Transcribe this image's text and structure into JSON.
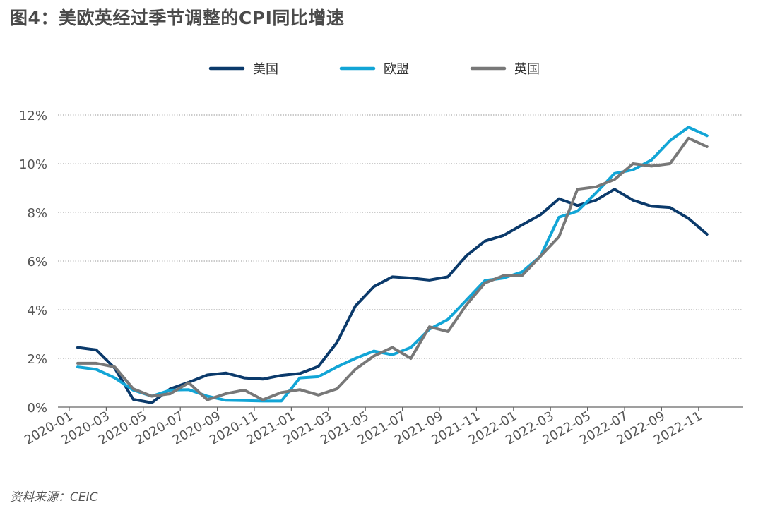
{
  "title": "图4：美欧英经过季节调整的CPI同比增速",
  "source": "资料来源：CEIC",
  "chart_data": {
    "type": "line",
    "title": "图4：美欧英经过季节调整的CPI同比增速",
    "xlabel": "",
    "ylabel": "",
    "ylim": [
      0,
      12
    ],
    "y_ticks": [
      0,
      2,
      4,
      6,
      8,
      10,
      12
    ],
    "y_tick_labels": [
      "0%",
      "2%",
      "4%",
      "6%",
      "8%",
      "10%",
      "12%"
    ],
    "y_unit": "%",
    "grid": "horizontal dotted",
    "legend_position": "top-center",
    "x_tick_labels": [
      "2020-01",
      "2020-03",
      "2020-05",
      "2020-07",
      "2020-09",
      "2020-11",
      "2021-01",
      "2021-03",
      "2021-05",
      "2021-07",
      "2021-09",
      "2021-11",
      "2022-01",
      "2022-03",
      "2022-05",
      "2022-07",
      "2022-09",
      "2022-11"
    ],
    "x": [
      "2020-01",
      "2020-02",
      "2020-03",
      "2020-04",
      "2020-05",
      "2020-06",
      "2020-07",
      "2020-08",
      "2020-09",
      "2020-10",
      "2020-11",
      "2020-12",
      "2021-01",
      "2021-02",
      "2021-03",
      "2021-04",
      "2021-05",
      "2021-06",
      "2021-07",
      "2021-08",
      "2021-09",
      "2021-10",
      "2021-11",
      "2021-12",
      "2022-01",
      "2022-02",
      "2022-03",
      "2022-04",
      "2022-05",
      "2022-06",
      "2022-07",
      "2022-08",
      "2022-09",
      "2022-10",
      "2022-11"
    ],
    "series": [
      {
        "name": "美国",
        "color": "#0b3a6b",
        "values": [
          2.45,
          2.35,
          1.6,
          0.32,
          0.18,
          0.75,
          1.02,
          1.32,
          1.4,
          1.2,
          1.15,
          1.3,
          1.38,
          1.67,
          2.65,
          4.15,
          4.95,
          5.35,
          5.3,
          5.22,
          5.35,
          6.22,
          6.82,
          7.05,
          7.48,
          7.9,
          8.56,
          8.28,
          8.5,
          8.95,
          8.5,
          8.25,
          8.2,
          7.75,
          7.1
        ]
      },
      {
        "name": "欧盟",
        "color": "#12a5d6",
        "values": [
          1.65,
          1.55,
          1.2,
          0.7,
          0.45,
          0.7,
          0.72,
          0.45,
          0.28,
          0.27,
          0.25,
          0.25,
          1.2,
          1.25,
          1.65,
          2.0,
          2.3,
          2.15,
          2.45,
          3.2,
          3.6,
          4.4,
          5.2,
          5.3,
          5.55,
          6.2,
          7.8,
          8.05,
          8.8,
          9.6,
          9.75,
          10.15,
          10.95,
          11.5,
          11.15
        ]
      },
      {
        "name": "英国",
        "color": "#787878",
        "values": [
          1.8,
          1.8,
          1.65,
          0.75,
          0.45,
          0.55,
          1.0,
          0.3,
          0.55,
          0.7,
          0.3,
          0.6,
          0.72,
          0.5,
          0.75,
          1.55,
          2.1,
          2.45,
          2.0,
          3.3,
          3.1,
          4.2,
          5.1,
          5.4,
          5.4,
          6.2,
          7.0,
          8.95,
          9.05,
          9.35,
          10.0,
          9.9,
          10.0,
          11.05,
          10.7
        ]
      }
    ]
  }
}
